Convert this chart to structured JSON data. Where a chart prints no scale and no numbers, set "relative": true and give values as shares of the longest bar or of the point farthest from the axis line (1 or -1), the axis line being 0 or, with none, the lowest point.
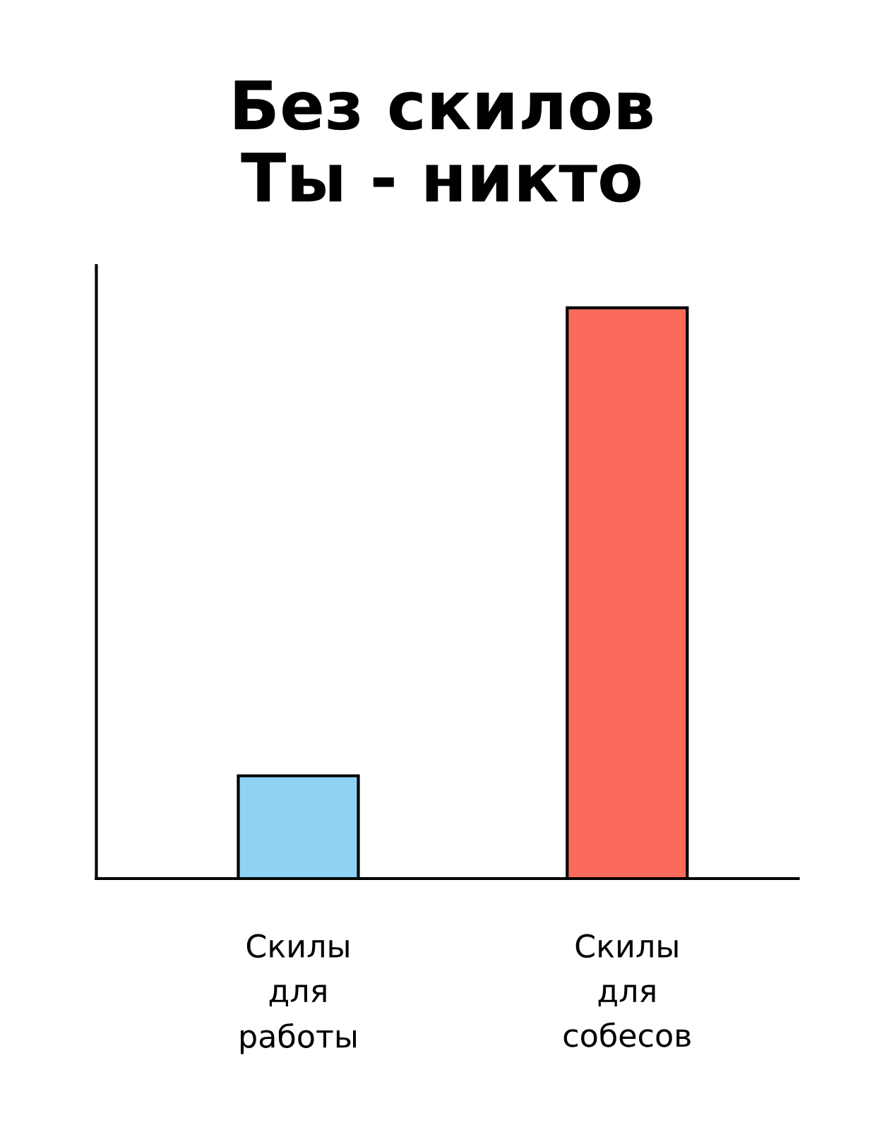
{
  "chart_data": {
    "type": "bar",
    "title": "Без скилов\nТы - никто",
    "categories": [
      "Скилы\nдля\nработы",
      "Скилы\nдля\nсобесов"
    ],
    "values": [
      0.18,
      1
    ],
    "colors": [
      "#8fd3f4",
      "#fb6b5b"
    ],
    "relative": true,
    "grid": false,
    "legend": false
  }
}
